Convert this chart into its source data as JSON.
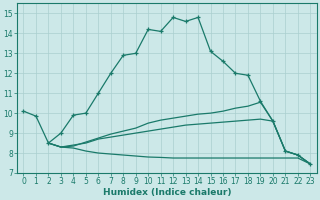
{
  "xlabel": "Humidex (Indice chaleur)",
  "xlim": [
    -0.5,
    23.5
  ],
  "ylim": [
    7,
    15.5
  ],
  "yticks": [
    7,
    8,
    9,
    10,
    11,
    12,
    13,
    14,
    15
  ],
  "xticks": [
    0,
    1,
    2,
    3,
    4,
    5,
    6,
    7,
    8,
    9,
    10,
    11,
    12,
    13,
    14,
    15,
    16,
    17,
    18,
    19,
    20,
    21,
    22,
    23
  ],
  "bg_color": "#cce8e8",
  "grid_color": "#aacfcf",
  "line_color": "#1a7a6a",
  "line1_x": [
    0,
    1,
    2,
    3,
    4,
    5,
    6,
    7,
    8,
    9,
    10,
    11,
    12,
    13,
    14,
    15,
    16,
    17,
    18,
    19,
    20,
    21,
    22,
    23
  ],
  "line1_y": [
    10.1,
    9.85,
    8.5,
    9.0,
    9.9,
    10.0,
    11.0,
    12.0,
    12.9,
    13.0,
    14.2,
    14.1,
    14.8,
    14.6,
    14.8,
    13.1,
    12.6,
    12.0,
    11.9,
    10.6,
    9.6,
    8.1,
    7.9,
    7.45
  ],
  "line2_x": [
    2,
    3,
    4,
    5,
    6,
    7,
    8,
    9,
    10,
    11,
    12,
    13,
    14,
    15,
    16,
    17,
    18,
    19,
    20,
    21,
    22,
    23
  ],
  "line2_y": [
    8.5,
    8.3,
    8.4,
    8.5,
    8.7,
    8.8,
    8.9,
    9.0,
    9.1,
    9.2,
    9.3,
    9.4,
    9.45,
    9.5,
    9.55,
    9.6,
    9.65,
    9.7,
    9.6,
    8.1,
    7.9,
    7.45
  ],
  "line3_x": [
    2,
    3,
    4,
    5,
    6,
    7,
    8,
    9,
    10,
    11,
    12,
    13,
    14,
    15,
    16,
    17,
    18,
    19,
    20,
    21,
    22,
    23
  ],
  "line3_y": [
    8.5,
    8.3,
    8.35,
    8.55,
    8.75,
    8.95,
    9.1,
    9.25,
    9.5,
    9.65,
    9.75,
    9.85,
    9.95,
    10.0,
    10.1,
    10.25,
    10.35,
    10.55,
    9.6,
    8.1,
    7.9,
    7.45
  ],
  "line4_x": [
    2,
    3,
    4,
    5,
    6,
    7,
    8,
    9,
    10,
    11,
    12,
    13,
    14,
    15,
    16,
    17,
    18,
    19,
    20,
    21,
    22,
    23
  ],
  "line4_y": [
    8.5,
    8.3,
    8.25,
    8.1,
    8.0,
    7.95,
    7.9,
    7.85,
    7.8,
    7.78,
    7.75,
    7.75,
    7.75,
    7.75,
    7.75,
    7.75,
    7.75,
    7.75,
    7.75,
    7.75,
    7.75,
    7.45
  ]
}
